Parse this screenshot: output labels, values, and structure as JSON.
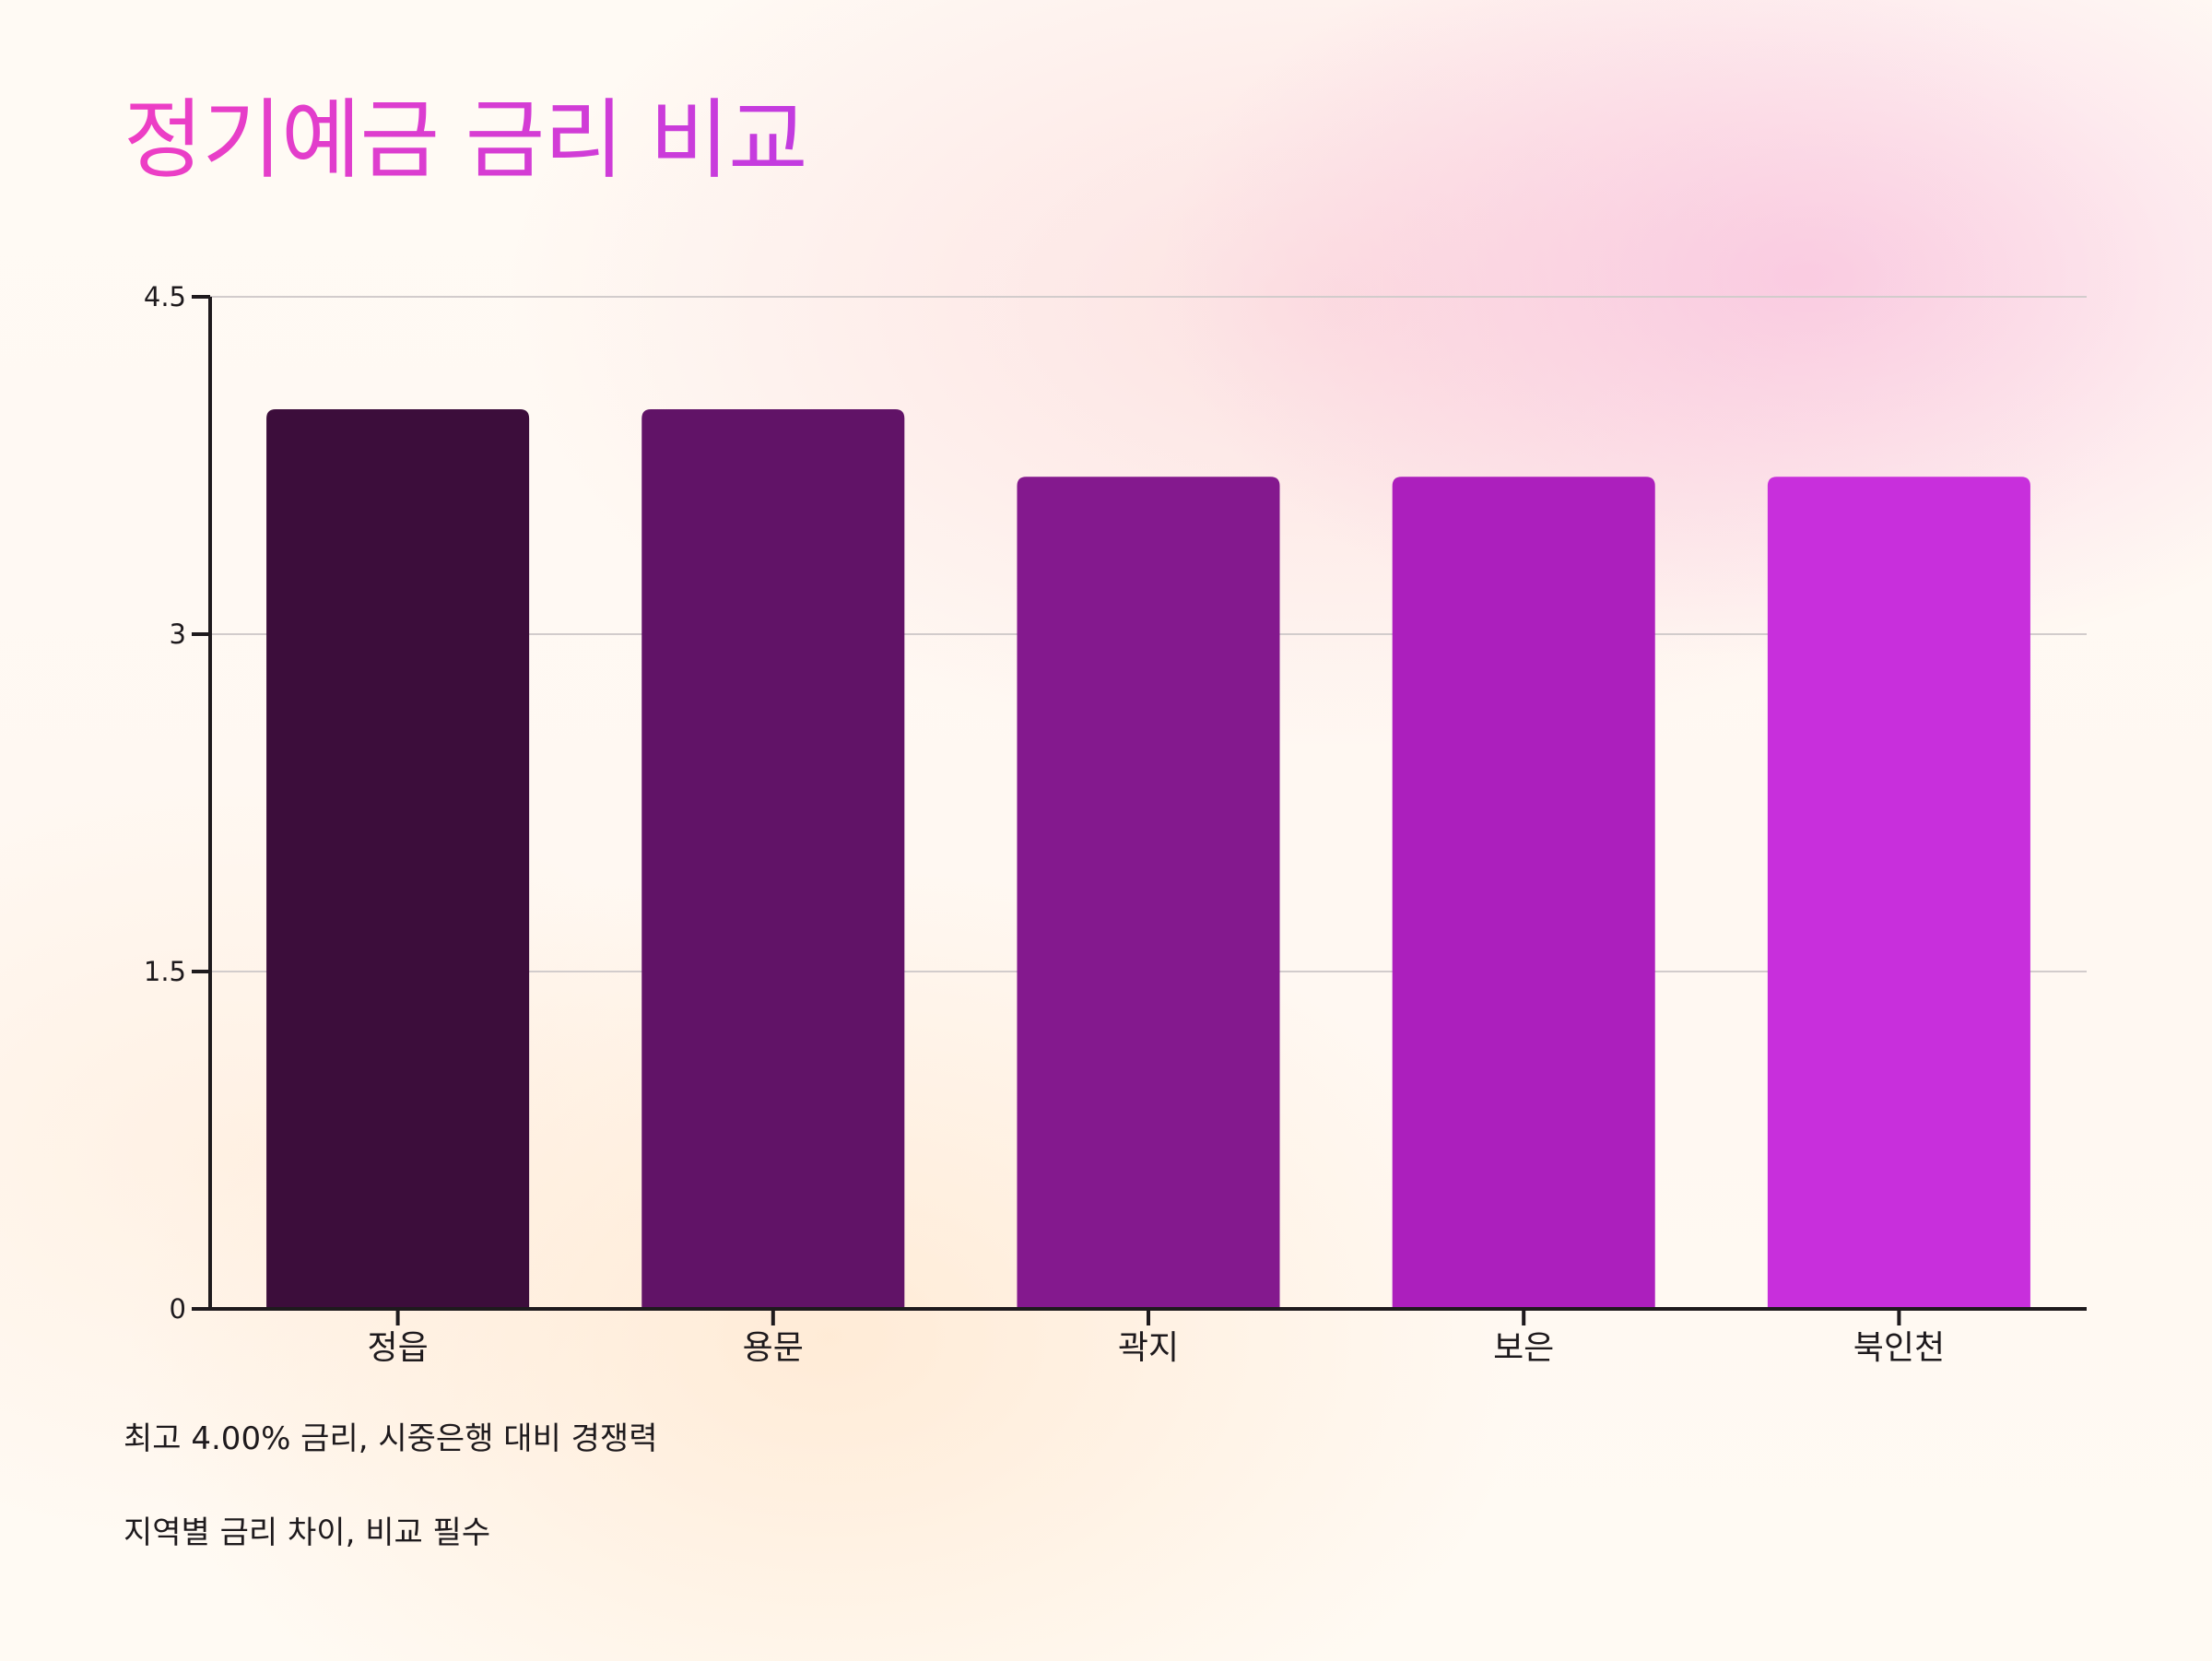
{
  "title": "정기예금 금리 비교",
  "notes": [
    "최고 4.00% 금리, 시중은행 대비 경쟁력",
    "지역별 금리 차이, 비교 필수"
  ],
  "colors": {
    "title_start": "#ee3ec4",
    "title_end": "#c23be0",
    "bars": [
      "#3c0d3b",
      "#611367",
      "#84198e",
      "#ac1fbd",
      "#c82fdc"
    ],
    "axis": "#1e1a1d",
    "grid": "#d2cccc"
  },
  "chart_data": {
    "type": "bar",
    "categories": [
      "정읍",
      "용문",
      "곽지",
      "보은",
      "북인천"
    ],
    "values": [
      4.0,
      4.0,
      3.7,
      3.7,
      3.7
    ],
    "ylim": [
      0,
      4.5
    ],
    "yticks": [
      "0",
      "1.5",
      "3",
      "4.5"
    ],
    "grid": true,
    "legend": "none",
    "xlabel": "",
    "ylabel": ""
  }
}
